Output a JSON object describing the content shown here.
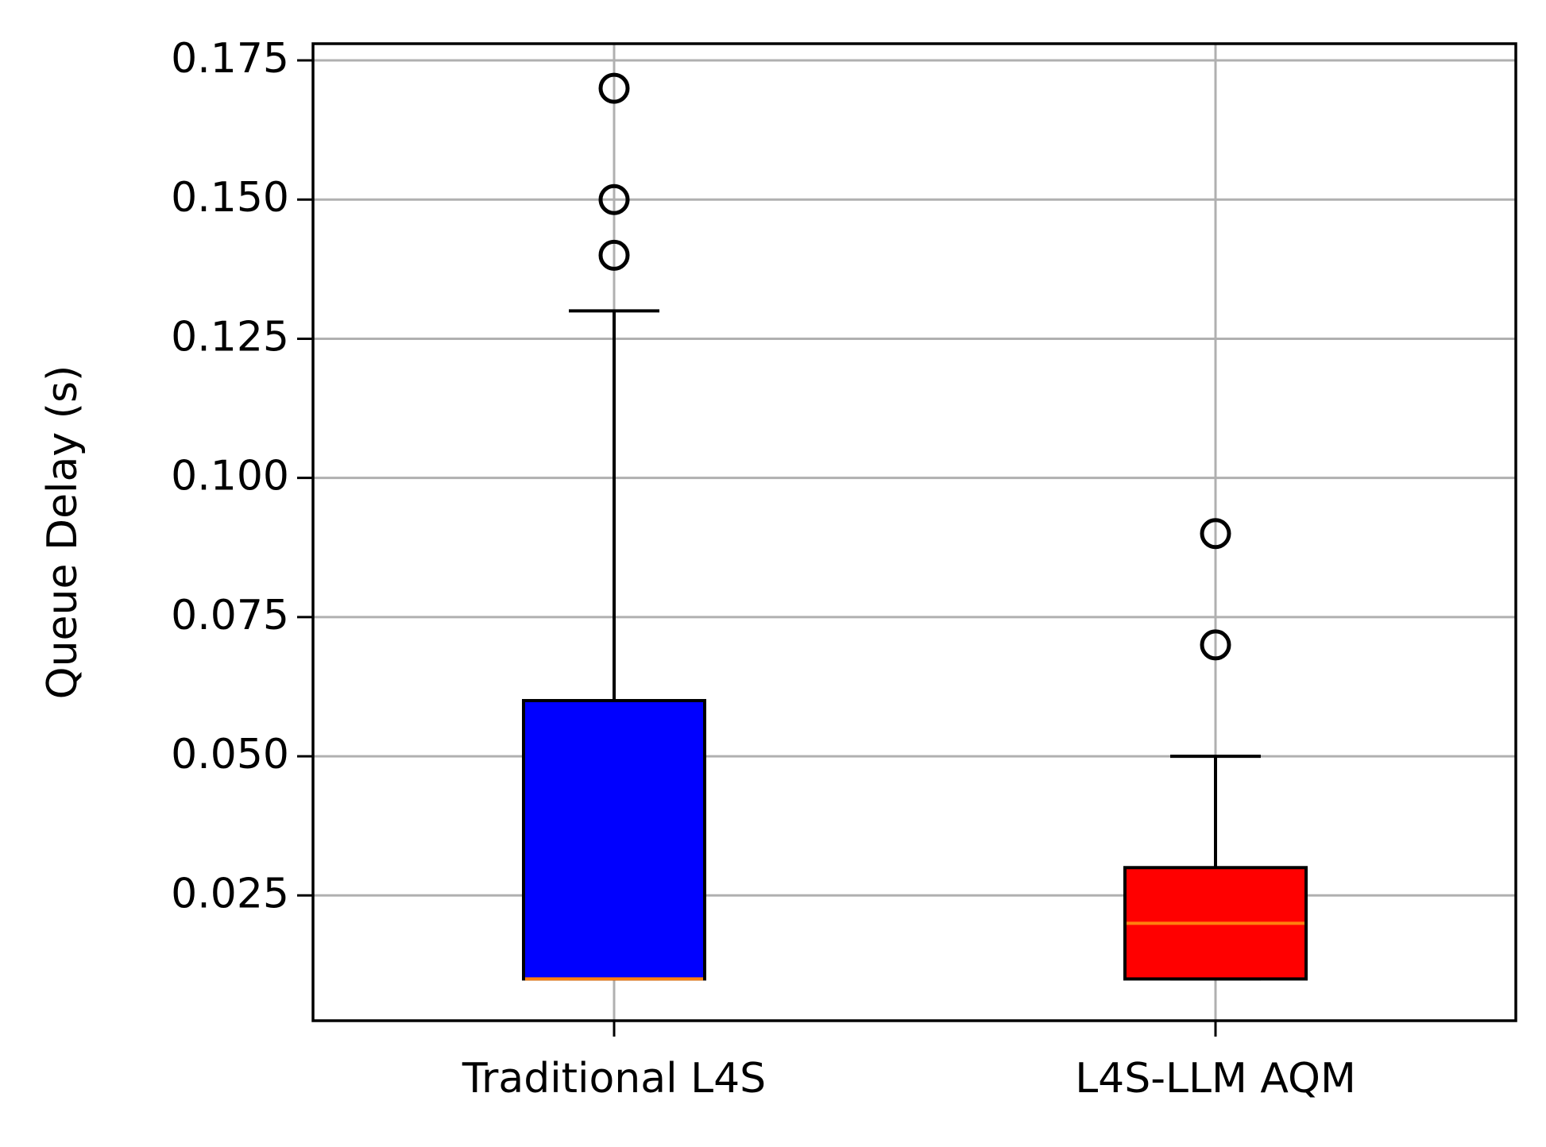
{
  "chart_data": {
    "type": "box",
    "title": "",
    "xlabel": "",
    "ylabel": "Queue Delay (s)",
    "ylim": [
      0.0025,
      0.178
    ],
    "yticks": [
      0.025,
      0.05,
      0.075,
      0.1,
      0.125,
      0.15,
      0.175
    ],
    "ytick_labels": [
      "0.025",
      "0.050",
      "0.075",
      "0.100",
      "0.125",
      "0.150",
      "0.175"
    ],
    "grid": true,
    "categories": [
      "Traditional L4S",
      "L4S-LLM AQM"
    ],
    "boxes": [
      {
        "category": "Traditional L4S",
        "whisker_low": 0.01,
        "q1": 0.01,
        "median": 0.01,
        "q3": 0.06,
        "whisker_high": 0.13,
        "outliers": [
          0.14,
          0.15,
          0.17
        ],
        "color": "#0000ff"
      },
      {
        "category": "L4S-LLM AQM",
        "whisker_low": 0.01,
        "q1": 0.01,
        "median": 0.02,
        "q3": 0.03,
        "whisker_high": 0.05,
        "outliers": [
          0.07,
          0.09
        ],
        "color": "#ff0000"
      }
    ],
    "median_color": "#ff7f0e",
    "grid_color": "#b0b0b0"
  }
}
